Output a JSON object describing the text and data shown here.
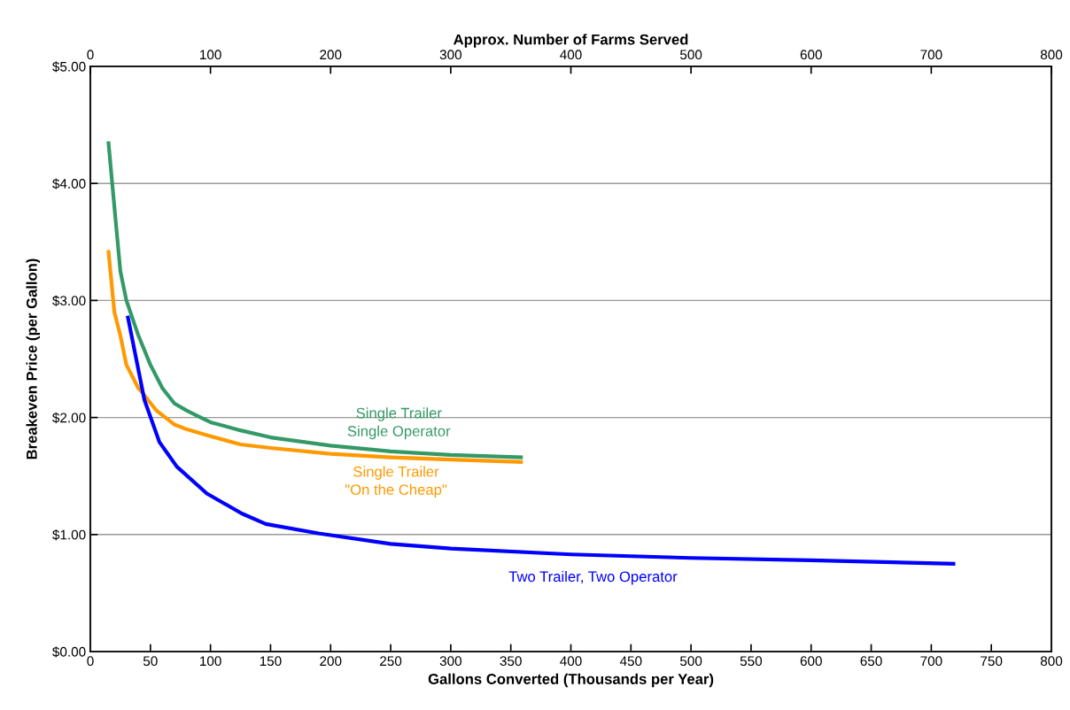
{
  "chart_data": {
    "type": "line",
    "xlabel": "Gallons Converted (Thousands per Year)",
    "ylabel": "Breakeven Price (per Gallon)",
    "x2label": "Approx. Number of Farms Served",
    "xlim": [
      0,
      800
    ],
    "xticks": [
      0,
      50,
      100,
      150,
      200,
      250,
      300,
      350,
      400,
      450,
      500,
      550,
      600,
      650,
      700,
      750,
      800
    ],
    "x2lim": [
      0,
      800
    ],
    "x2ticks": [
      0,
      100,
      200,
      300,
      400,
      500,
      600,
      700,
      800
    ],
    "ylim": [
      0,
      5
    ],
    "yticks": [
      {
        "value": 0,
        "label": "$0.00"
      },
      {
        "value": 1,
        "label": "$1.00"
      },
      {
        "value": 2,
        "label": "$2.00"
      },
      {
        "value": 3,
        "label": "$3.00"
      },
      {
        "value": 4,
        "label": "$4.00"
      },
      {
        "value": 5,
        "label": "$5.00"
      }
    ],
    "grid": "y",
    "marker": "none",
    "line_style": "solid",
    "series": [
      {
        "name": "Single Trailer\nSingle Operator",
        "color": "#339966",
        "x": [
          15,
          20,
          25,
          30,
          40,
          50,
          60,
          70,
          80,
          90,
          100,
          125,
          150,
          200,
          250,
          300,
          360
        ],
        "values": [
          4.36,
          3.8,
          3.25,
          3.0,
          2.7,
          2.45,
          2.25,
          2.12,
          2.06,
          2.01,
          1.96,
          1.89,
          1.83,
          1.76,
          1.71,
          1.68,
          1.66
        ]
      },
      {
        "name": "Single Trailer\n\"On the Cheap\"",
        "color": "#ff9900",
        "x": [
          15,
          20,
          25,
          30,
          40,
          45,
          55,
          70,
          80,
          100,
          125,
          150,
          200,
          250,
          300,
          360
        ],
        "values": [
          3.43,
          2.9,
          2.7,
          2.45,
          2.25,
          2.19,
          2.06,
          1.94,
          1.9,
          1.84,
          1.77,
          1.74,
          1.69,
          1.66,
          1.64,
          1.62
        ]
      },
      {
        "name": "Two Trailer, Two Operator",
        "color": "#0000ff",
        "x": [
          31,
          45,
          57.5,
          72,
          97,
          126,
          146,
          190,
          250,
          300,
          400,
          500,
          600,
          720
        ],
        "values": [
          2.87,
          2.15,
          1.79,
          1.58,
          1.35,
          1.18,
          1.09,
          1.01,
          0.92,
          0.88,
          0.83,
          0.8,
          0.78,
          0.75
        ]
      }
    ]
  }
}
